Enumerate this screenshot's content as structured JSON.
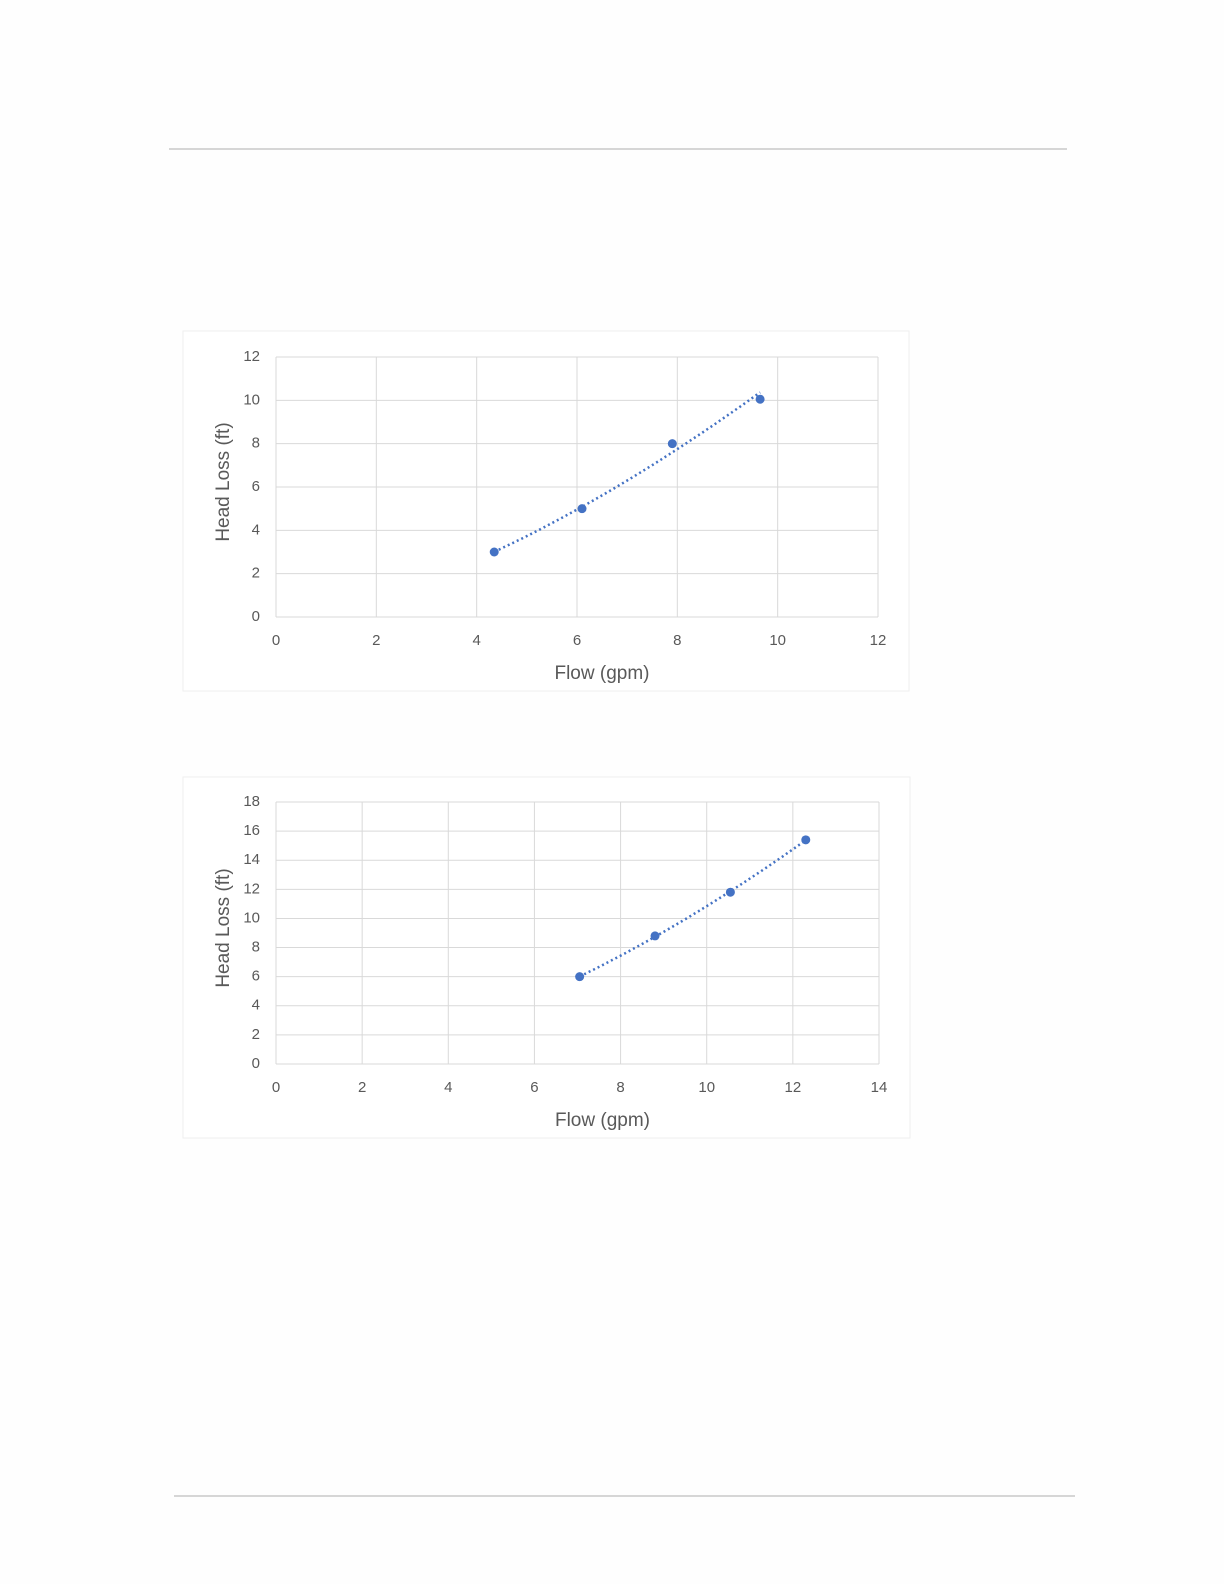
{
  "chart_data": [
    {
      "type": "scatter",
      "x_label": "Flow (gpm)",
      "y_label": "Head Loss (ft)",
      "x": [
        4.35,
        6.1,
        7.9,
        9.65
      ],
      "values": [
        3.0,
        5.0,
        8.0,
        10.05
      ],
      "color": "#4472c4",
      "trendline": "power",
      "xlim": [
        0,
        12
      ],
      "xticks": [
        0,
        2,
        4,
        6,
        8,
        10,
        12
      ],
      "ylim": [
        0,
        12
      ],
      "yticks": [
        0,
        2,
        4,
        6,
        8,
        10,
        12
      ],
      "grid": true
    },
    {
      "type": "scatter",
      "x_label": "Flow (gpm)",
      "y_label": "Head Loss (ft)",
      "x": [
        7.05,
        8.8,
        10.55,
        12.3
      ],
      "values": [
        6.0,
        8.8,
        11.8,
        15.4
      ],
      "color": "#4472c4",
      "trendline": "power",
      "xlim": [
        0,
        14
      ],
      "xticks": [
        0,
        2,
        4,
        6,
        8,
        10,
        12,
        14
      ],
      "ylim": [
        0,
        18
      ],
      "yticks": [
        0,
        2,
        4,
        6,
        8,
        10,
        12,
        14,
        16,
        18
      ],
      "grid": true
    }
  ]
}
